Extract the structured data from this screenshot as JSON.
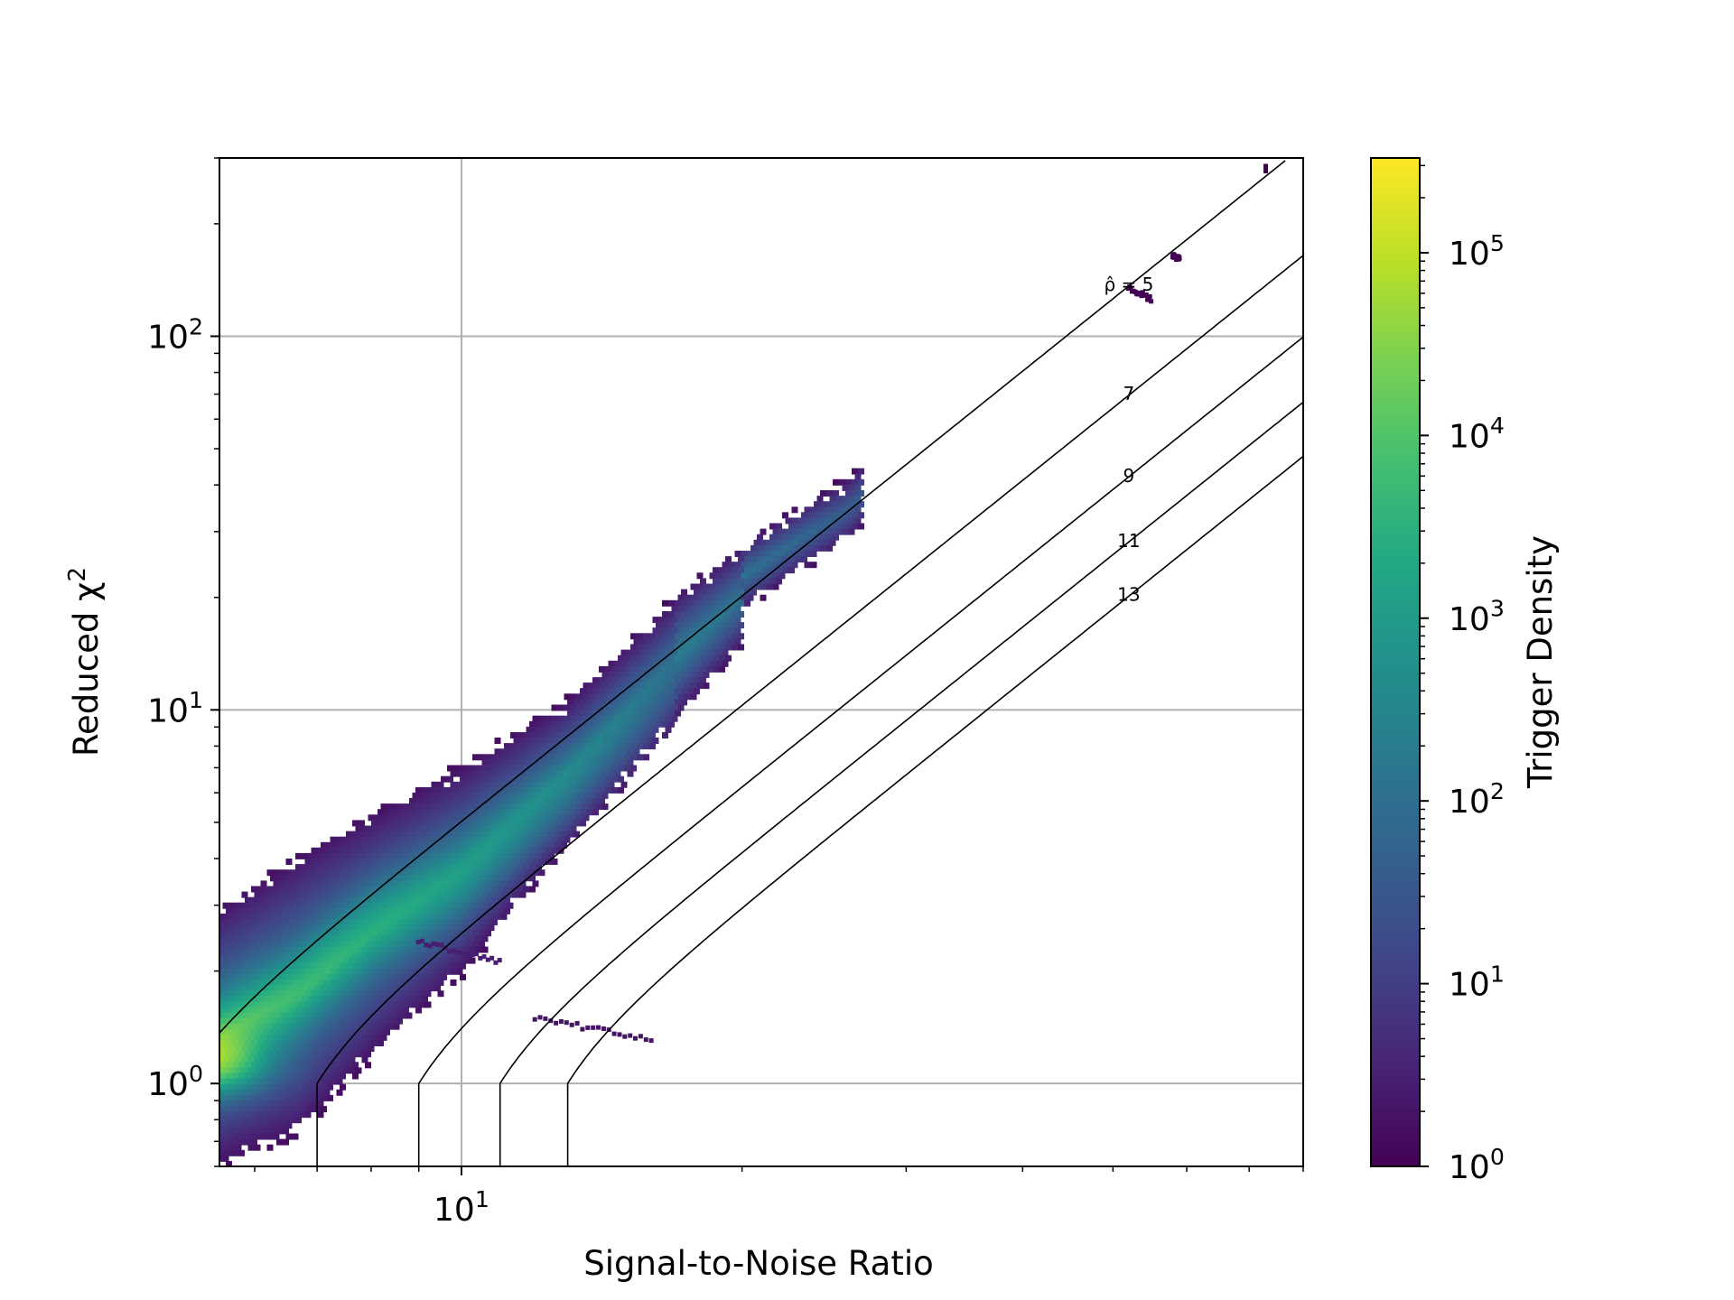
{
  "chart_data": {
    "type": "heatmap",
    "plot_style": "hexbin density",
    "x_scale": "log",
    "y_scale": "log",
    "xlabel": "Signal-to-Noise Ratio",
    "ylabel": "Reduced χ²",
    "xlim": [
      5.5,
      80
    ],
    "ylim": [
      0.6,
      300
    ],
    "x_major_ticks": [
      10
    ],
    "x_major_tick_labels": [
      "10^1"
    ],
    "y_major_ticks": [
      1,
      10,
      100
    ],
    "y_major_tick_labels": [
      "10^0",
      "10^1",
      "10^2"
    ],
    "grid": true,
    "colorbar": {
      "label": "Trigger Density",
      "scale": "log",
      "colormap": "viridis",
      "range": [
        1,
        330000
      ],
      "ticks": [
        1,
        10,
        100,
        1000,
        10000,
        100000
      ],
      "tick_labels": [
        "10^0",
        "10^1",
        "10^2",
        "10^3",
        "10^4",
        "10^5"
      ]
    },
    "contours": {
      "description": "Constant re-weighted SNR contours",
      "label_prefix": "ρ̂ = ",
      "series": [
        {
          "label": "ρ̂ = 5",
          "value": 5
        },
        {
          "label": "7",
          "value": 7
        },
        {
          "label": "9",
          "value": 9
        },
        {
          "label": "11",
          "value": 11
        },
        {
          "label": "13",
          "value": 13
        }
      ]
    },
    "density_region": {
      "peak_snr": 5.6,
      "peak_chisq": 1.1,
      "peak_density": 330000,
      "upper_edge": [
        [
          5.5,
          2.9
        ],
        [
          7,
          4.3
        ],
        [
          10,
          7.0
        ],
        [
          13,
          10.5
        ],
        [
          17,
          20
        ],
        [
          20,
          27
        ],
        [
          23,
          34
        ],
        [
          26,
          41
        ],
        [
          27,
          45
        ]
      ],
      "lower_edge": [
        [
          5.5,
          0.62
        ],
        [
          6.7,
          0.75
        ],
        [
          8,
          1.2
        ],
        [
          10,
          2.0
        ],
        [
          12,
          3.5
        ],
        [
          15,
          6.5
        ],
        [
          17,
          9.5
        ],
        [
          20,
          15
        ]
      ],
      "ridge": [
        [
          5.5,
          1.3
        ],
        [
          6.5,
          1.7
        ],
        [
          8,
          2.6
        ],
        [
          10,
          3.5
        ],
        [
          13,
          6.0
        ],
        [
          17,
          11
        ]
      ],
      "outlier_clusters": [
        {
          "snr": [
            12.0,
            16.0
          ],
          "chisq": [
            1.3,
            1.5
          ],
          "density": 2
        },
        {
          "snr": [
            9.0,
            11.0
          ],
          "chisq": [
            2.1,
            2.4
          ],
          "density": 3
        },
        {
          "snr": [
            52,
            55
          ],
          "chisq": [
            125,
            135
          ],
          "density": 1
        },
        {
          "snr": [
            58,
            59
          ],
          "chisq": [
            160,
            165
          ],
          "density": 1
        },
        {
          "snr": [
            73,
            73
          ],
          "chisq": [
            280,
            280
          ],
          "density": 1
        }
      ]
    }
  }
}
